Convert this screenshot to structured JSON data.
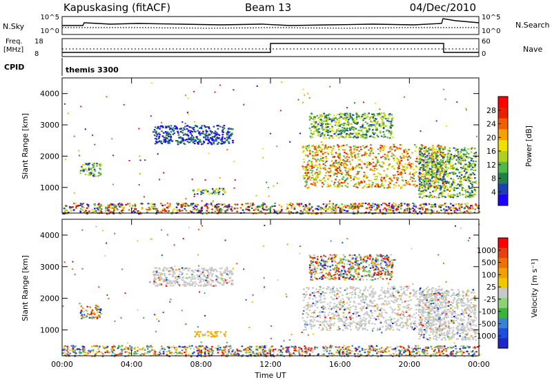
{
  "header": {
    "station": "Kapuskasing (fitACF)",
    "beam": "Beam 13",
    "date": "04/Dec/2010"
  },
  "top_panels": {
    "nsky_label": "N.Sky",
    "nsky_ticks": [
      "10^5",
      "10^0"
    ],
    "nsearch_label": "N.Search",
    "nsearch_ticks": [
      "10^5",
      "10^0"
    ],
    "freq_label": "Freq.",
    "freq_unit": "[MHz]",
    "freq_ticks": [
      "18",
      "8"
    ],
    "nave_label": "Nave",
    "nave_ticks": [
      "60",
      "0"
    ],
    "cpid_label": "CPID",
    "cpid_value": "themis 3300"
  },
  "chart_data": [
    {
      "type": "heatmap",
      "name": "power",
      "ylabel": "Slant Range [km]",
      "yticks": [
        "1000",
        "2000",
        "3000",
        "4000"
      ],
      "ylim": [
        180,
        4500
      ],
      "xlim_hours": [
        0,
        24
      ],
      "colorbar_label": "Power [dB]",
      "colorbar_ticks": [
        "4",
        "8",
        "12",
        "16",
        "20",
        "24",
        "28"
      ],
      "colorbar_colors": [
        "#1e00ff",
        "#1e40b4",
        "#20804a",
        "#50b848",
        "#b0d020",
        "#f0e000",
        "#f8a000",
        "#f06000",
        "#e82000",
        "#ff0000"
      ],
      "regions": [
        {
          "t": [
            0.0,
            24.0
          ],
          "r": [
            180,
            520
          ],
          "level": "mixed"
        },
        {
          "t": [
            1.0,
            2.2
          ],
          "r": [
            1380,
            1800
          ],
          "level": "mid"
        },
        {
          "t": [
            5.2,
            9.8
          ],
          "r": [
            2400,
            3000
          ],
          "level": "low"
        },
        {
          "t": [
            7.5,
            9.4
          ],
          "r": [
            800,
            1000
          ],
          "level": "mid"
        },
        {
          "t": [
            13.8,
            22.0
          ],
          "r": [
            1000,
            2400
          ],
          "level": "high"
        },
        {
          "t": [
            14.2,
            19.0
          ],
          "r": [
            2600,
            3400
          ],
          "level": "mid"
        },
        {
          "t": [
            20.5,
            23.8
          ],
          "r": [
            700,
            2300
          ],
          "level": "mid"
        }
      ]
    },
    {
      "type": "heatmap",
      "name": "velocity",
      "ylabel": "Slant Range [km]",
      "yticks": [
        "1000",
        "2000",
        "3000",
        "4000"
      ],
      "ylim": [
        180,
        4500
      ],
      "xlim_hours": [
        0,
        24
      ],
      "xlabel": "Time UT",
      "xticks": [
        "00:00",
        "04:00",
        "08:00",
        "12:00",
        "16:00",
        "20:00",
        "00:00"
      ],
      "colorbar_label": "Velocity [m s⁻¹]",
      "colorbar_ticks": [
        "1000",
        "500",
        "100",
        "25",
        "-25",
        "-100",
        "-500",
        "-1000"
      ],
      "colorbar_colors": [
        "#1e28c8",
        "#1e50e0",
        "#3c82d2",
        "#3cb43c",
        "#8cd278",
        "#c8c8c8",
        "#f0c800",
        "#f0a000",
        "#f07000",
        "#e84010",
        "#ff0000"
      ],
      "regions": [
        {
          "t": [
            0.0,
            24.0
          ],
          "r": [
            180,
            520
          ],
          "level": "mixed"
        },
        {
          "t": [
            1.0,
            2.2
          ],
          "r": [
            1380,
            1800
          ],
          "level": "mixed"
        },
        {
          "t": [
            5.2,
            9.8
          ],
          "r": [
            2400,
            3000
          ],
          "level": "gray"
        },
        {
          "t": [
            7.5,
            9.4
          ],
          "r": [
            800,
            1000
          ],
          "level": "orange"
        },
        {
          "t": [
            13.8,
            22.0
          ],
          "r": [
            1000,
            2400
          ],
          "level": "gray"
        },
        {
          "t": [
            14.2,
            19.0
          ],
          "r": [
            2600,
            3400
          ],
          "level": "mixed"
        },
        {
          "t": [
            20.5,
            23.8
          ],
          "r": [
            700,
            2300
          ],
          "level": "gray"
        }
      ]
    }
  ]
}
